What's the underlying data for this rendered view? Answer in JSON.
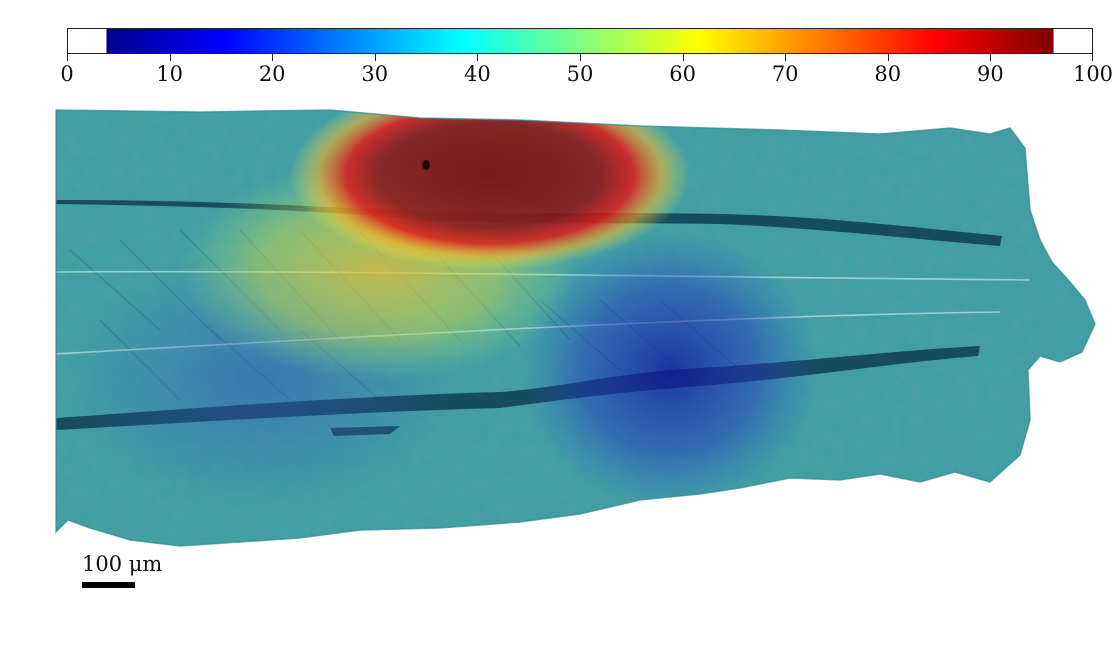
{
  "colorbar": {
    "colormap": "jet",
    "min": 0,
    "max": 100,
    "tick_labels": [
      "0",
      "10",
      "20",
      "30",
      "40",
      "50",
      "60",
      "70",
      "80",
      "90",
      "100"
    ],
    "colors": [
      "#00008f",
      "#0000ff",
      "#0080ff",
      "#00ffff",
      "#80ff80",
      "#ffff00",
      "#ff8000",
      "#ff0000",
      "#800000"
    ]
  },
  "scalebar": {
    "label": "100 μm"
  },
  "image": {
    "subject": "stained tissue micrograph overlaid with heatmap",
    "base_color": "#3a9ea3"
  }
}
